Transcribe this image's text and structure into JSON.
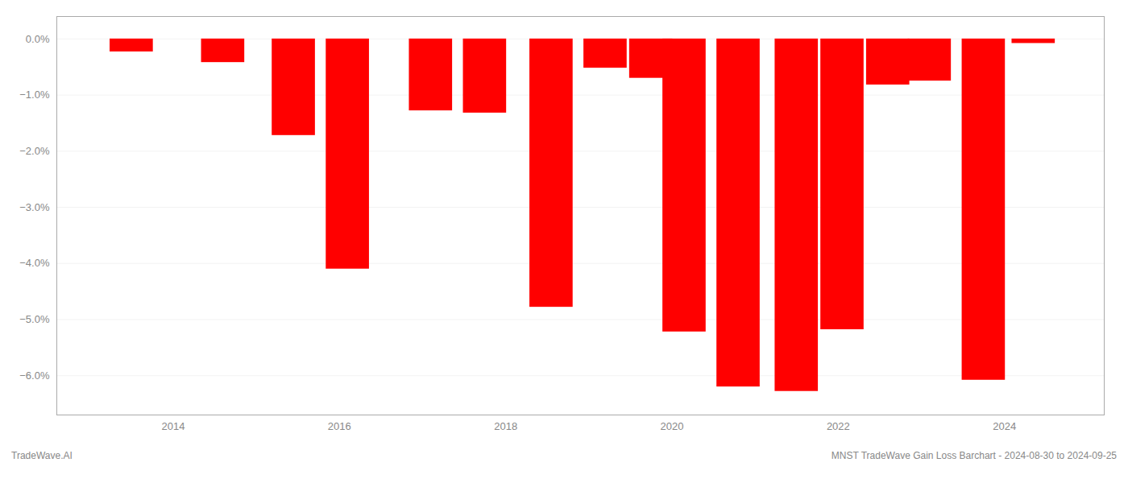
{
  "chart_data": {
    "type": "bar",
    "x": [
      2013.5,
      2014.6,
      2015.45,
      2016.1,
      2017.1,
      2017.75,
      2018.55,
      2019.2,
      2019.75,
      2020.15,
      2020.8,
      2021.5,
      2022.05,
      2022.6,
      2023.1,
      2023.75,
      2024.35
    ],
    "values": [
      -0.23,
      -0.42,
      -1.72,
      -4.1,
      -1.28,
      -1.32,
      -4.78,
      -0.52,
      -0.7,
      -5.22,
      -6.2,
      -6.28,
      -5.18,
      -0.82,
      -0.75,
      -6.08,
      -0.08
    ],
    "color": "#ff0000",
    "xlim": [
      2012.6,
      2025.2
    ],
    "xticks": [
      2014,
      2016,
      2018,
      2020,
      2022,
      2024
    ],
    "ylim": [
      -6.7,
      0.4
    ],
    "yticks": [
      {
        "value": 0.0,
        "label": "0.0%"
      },
      {
        "value": -1.0,
        "label": "−1.0%"
      },
      {
        "value": -2.0,
        "label": "−2.0%"
      },
      {
        "value": -3.0,
        "label": "−3.0%"
      },
      {
        "value": -4.0,
        "label": "−4.0%"
      },
      {
        "value": -5.0,
        "label": "−5.0%"
      },
      {
        "value": -6.0,
        "label": "−6.0%"
      }
    ],
    "grid": "y",
    "annotations": [
      "TradeWave.AI",
      "MNST TradeWave Gain Loss Barchart - 2024-08-30 to 2024-09-25"
    ]
  }
}
